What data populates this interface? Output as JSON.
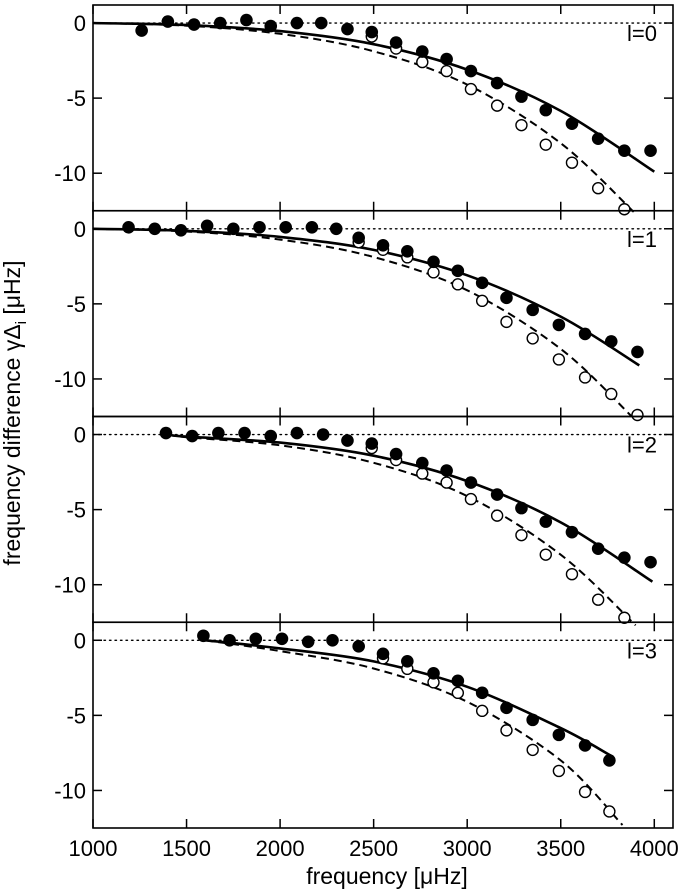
{
  "chart_data": {
    "type": "scatter",
    "xlabel": "frequency [μHz]",
    "ylabel_main": "frequency difference γΔ",
    "ylabel_sub": "i",
    "ylabel_unit": " [μHz]",
    "xlim": [
      1000,
      4100
    ],
    "xticks": [
      1000,
      1500,
      2000,
      2500,
      3000,
      3500,
      4000
    ],
    "ylim": [
      -12.5,
      1.2
    ],
    "yticks": [
      0,
      -5,
      -10
    ],
    "colors": {
      "axes": "#000000",
      "filled": "#000000",
      "open_fill": "#ffffff"
    },
    "panels": [
      {
        "label": "l=0",
        "filled": [
          [
            1260,
            -0.5
          ],
          [
            1400,
            0.1
          ],
          [
            1540,
            -0.1
          ],
          [
            1680,
            0.0
          ],
          [
            1820,
            0.2
          ],
          [
            1950,
            -0.2
          ],
          [
            2090,
            0.0
          ],
          [
            2220,
            0.0
          ],
          [
            2360,
            -0.4
          ],
          [
            2490,
            -0.6
          ],
          [
            2620,
            -1.3
          ],
          [
            2760,
            -1.9
          ],
          [
            2890,
            -2.4
          ],
          [
            3020,
            -3.2
          ],
          [
            3160,
            -4.0
          ],
          [
            3290,
            -4.9
          ],
          [
            3420,
            -5.8
          ],
          [
            3560,
            -6.7
          ],
          [
            3700,
            -7.7
          ],
          [
            3840,
            -8.5
          ],
          [
            3980,
            -8.5
          ]
        ],
        "open": [
          [
            2490,
            -0.9
          ],
          [
            2620,
            -1.7
          ],
          [
            2760,
            -2.6
          ],
          [
            2890,
            -3.2
          ],
          [
            3020,
            -4.4
          ],
          [
            3160,
            -5.5
          ],
          [
            3290,
            -6.8
          ],
          [
            3420,
            -8.1
          ],
          [
            3560,
            -9.3
          ],
          [
            3700,
            -11.0
          ],
          [
            3840,
            -12.4
          ]
        ],
        "solid_curve": [
          [
            1000,
            0.0
          ],
          [
            1500,
            -0.14
          ],
          [
            2000,
            -0.54
          ],
          [
            2500,
            -1.41
          ],
          [
            3000,
            -3.1
          ],
          [
            3500,
            -5.85
          ],
          [
            4000,
            -9.9
          ]
        ],
        "dashed_curve": [
          [
            1000,
            0.0
          ],
          [
            1500,
            -0.18
          ],
          [
            2000,
            -0.72
          ],
          [
            2500,
            -1.88
          ],
          [
            3000,
            -4.1
          ],
          [
            3500,
            -8.0
          ],
          [
            3900,
            -12.7
          ]
        ]
      },
      {
        "label": "l=1",
        "filled": [
          [
            1190,
            0.1
          ],
          [
            1330,
            0.0
          ],
          [
            1470,
            -0.1
          ],
          [
            1610,
            0.2
          ],
          [
            1750,
            0.0
          ],
          [
            1890,
            0.1
          ],
          [
            2030,
            0.1
          ],
          [
            2170,
            0.1
          ],
          [
            2300,
            0.0
          ],
          [
            2420,
            -0.6
          ],
          [
            2550,
            -1.1
          ],
          [
            2680,
            -1.5
          ],
          [
            2820,
            -2.2
          ],
          [
            2950,
            -2.8
          ],
          [
            3080,
            -3.6
          ],
          [
            3210,
            -4.6
          ],
          [
            3350,
            -5.4
          ],
          [
            3490,
            -6.4
          ],
          [
            3630,
            -7.0
          ],
          [
            3770,
            -7.5
          ],
          [
            3910,
            -8.2
          ]
        ],
        "open": [
          [
            2420,
            -0.9
          ],
          [
            2550,
            -1.4
          ],
          [
            2680,
            -1.9
          ],
          [
            2820,
            -2.9
          ],
          [
            2950,
            -3.7
          ],
          [
            3080,
            -4.8
          ],
          [
            3210,
            -6.2
          ],
          [
            3350,
            -7.3
          ],
          [
            3490,
            -8.7
          ],
          [
            3630,
            -9.9
          ],
          [
            3770,
            -11.0
          ],
          [
            3910,
            -12.4
          ]
        ],
        "solid_curve": [
          [
            1000,
            0.0
          ],
          [
            1500,
            -0.14
          ],
          [
            2000,
            -0.54
          ],
          [
            2500,
            -1.41
          ],
          [
            3000,
            -3.1
          ],
          [
            3500,
            -5.85
          ],
          [
            3920,
            -9.1
          ]
        ],
        "dashed_curve": [
          [
            1000,
            0.0
          ],
          [
            1500,
            -0.18
          ],
          [
            2000,
            -0.72
          ],
          [
            2500,
            -1.88
          ],
          [
            3000,
            -4.1
          ],
          [
            3500,
            -8.0
          ],
          [
            3880,
            -12.5
          ]
        ]
      },
      {
        "label": "l=2",
        "filled": [
          [
            1390,
            0.1
          ],
          [
            1530,
            -0.1
          ],
          [
            1670,
            0.1
          ],
          [
            1810,
            0.1
          ],
          [
            1950,
            -0.1
          ],
          [
            2090,
            0.1
          ],
          [
            2230,
            0.0
          ],
          [
            2360,
            -0.4
          ],
          [
            2490,
            -0.6
          ],
          [
            2620,
            -1.3
          ],
          [
            2760,
            -1.9
          ],
          [
            2890,
            -2.4
          ],
          [
            3020,
            -3.2
          ],
          [
            3160,
            -4.0
          ],
          [
            3290,
            -4.9
          ],
          [
            3420,
            -5.8
          ],
          [
            3560,
            -6.5
          ],
          [
            3700,
            -7.6
          ],
          [
            3840,
            -8.2
          ],
          [
            3980,
            -8.5
          ]
        ],
        "open": [
          [
            2490,
            -0.9
          ],
          [
            2620,
            -1.7
          ],
          [
            2760,
            -2.6
          ],
          [
            2890,
            -3.2
          ],
          [
            3020,
            -4.3
          ],
          [
            3160,
            -5.4
          ],
          [
            3290,
            -6.7
          ],
          [
            3420,
            -8.0
          ],
          [
            3560,
            -9.3
          ],
          [
            3700,
            -11.0
          ],
          [
            3840,
            -12.2
          ]
        ],
        "solid_curve": [
          [
            1400,
            0.0
          ],
          [
            1500,
            -0.14
          ],
          [
            2000,
            -0.54
          ],
          [
            2500,
            -1.41
          ],
          [
            3000,
            -3.1
          ],
          [
            3500,
            -5.85
          ],
          [
            3990,
            -9.8
          ]
        ],
        "dashed_curve": [
          [
            1400,
            0.0
          ],
          [
            1500,
            -0.18
          ],
          [
            2000,
            -0.72
          ],
          [
            2500,
            -1.88
          ],
          [
            3000,
            -4.1
          ],
          [
            3500,
            -8.0
          ],
          [
            3900,
            -12.7
          ]
        ]
      },
      {
        "label": "l=3",
        "filled": [
          [
            1590,
            0.3
          ],
          [
            1730,
            0.0
          ],
          [
            1870,
            0.1
          ],
          [
            2010,
            0.1
          ],
          [
            2150,
            -0.1
          ],
          [
            2280,
            0.0
          ],
          [
            2420,
            -0.4
          ],
          [
            2550,
            -0.9
          ],
          [
            2680,
            -1.4
          ],
          [
            2820,
            -2.2
          ],
          [
            2950,
            -2.7
          ],
          [
            3080,
            -3.5
          ],
          [
            3210,
            -4.5
          ],
          [
            3350,
            -5.3
          ],
          [
            3490,
            -6.3
          ],
          [
            3630,
            -7.0
          ],
          [
            3760,
            -8.0
          ]
        ],
        "open": [
          [
            2550,
            -1.2
          ],
          [
            2680,
            -1.9
          ],
          [
            2820,
            -2.8
          ],
          [
            2950,
            -3.5
          ],
          [
            3080,
            -4.7
          ],
          [
            3210,
            -6.0
          ],
          [
            3350,
            -7.3
          ],
          [
            3490,
            -8.7
          ],
          [
            3630,
            -10.1
          ],
          [
            3760,
            -11.4
          ]
        ],
        "solid_curve": [
          [
            1600,
            0.0
          ],
          [
            2000,
            -0.54
          ],
          [
            2500,
            -1.41
          ],
          [
            3000,
            -3.1
          ],
          [
            3500,
            -5.85
          ],
          [
            3770,
            -7.7
          ]
        ],
        "dashed_curve": [
          [
            1600,
            0.0
          ],
          [
            2000,
            -0.72
          ],
          [
            2500,
            -1.88
          ],
          [
            3000,
            -4.1
          ],
          [
            3500,
            -8.0
          ],
          [
            3830,
            -12.3
          ]
        ]
      }
    ]
  }
}
